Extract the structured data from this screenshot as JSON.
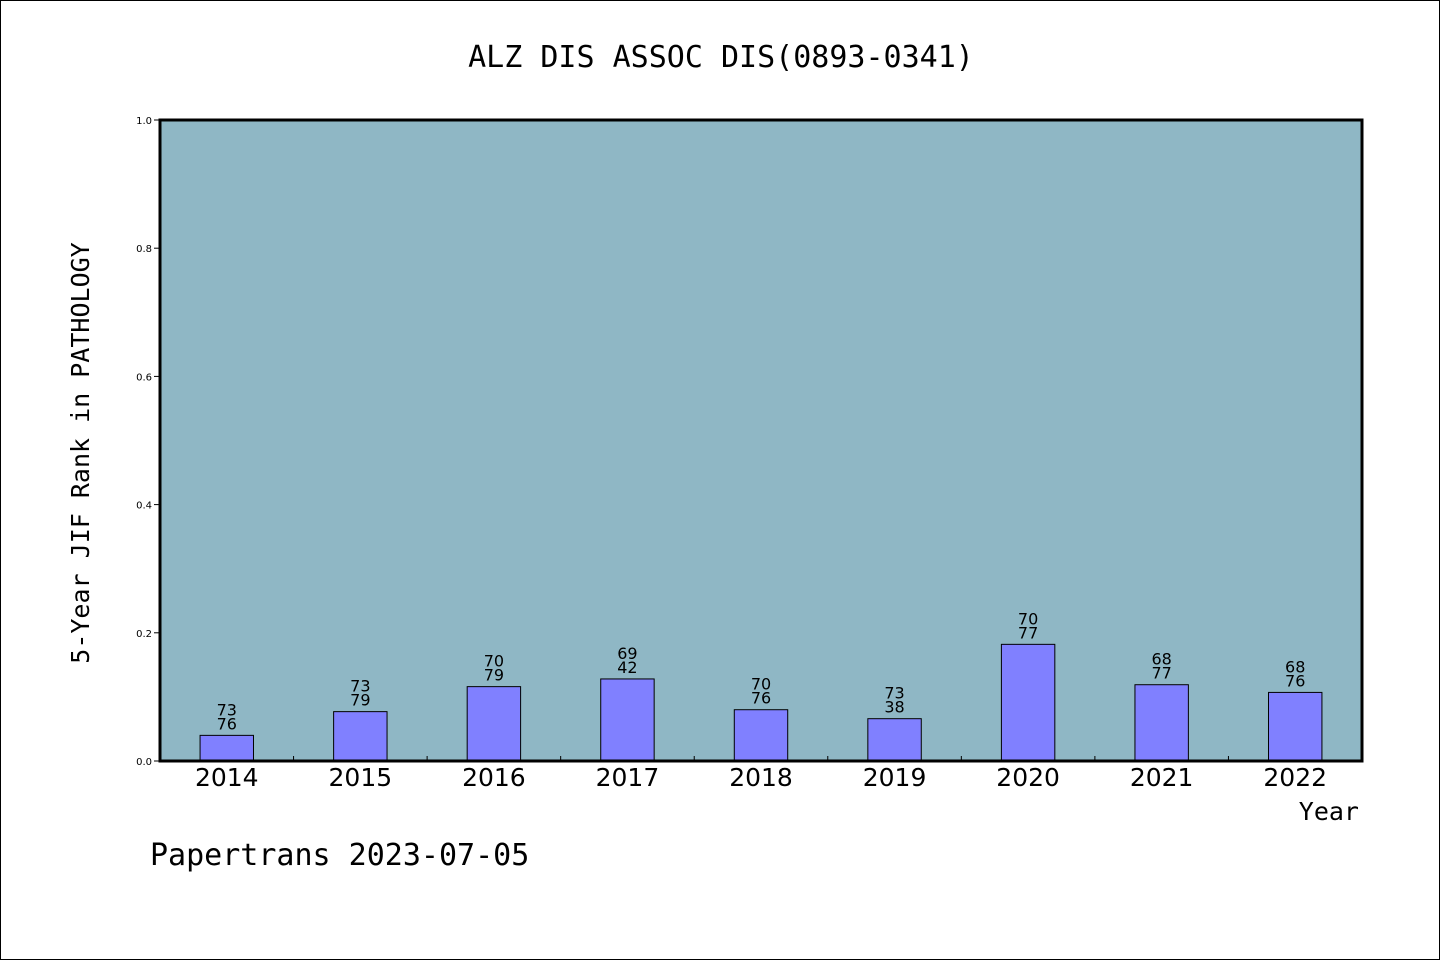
{
  "chart_data": {
    "type": "bar",
    "title": "ALZ DIS ASSOC DIS(0893-0341)",
    "xlabel": "Year",
    "ylabel": "5-Year JIF Rank in PATHOLOGY",
    "ylim": [
      0,
      1.0
    ],
    "yticks": [
      "0.0",
      "0.2",
      "0.4",
      "0.6",
      "0.8",
      "1.0"
    ],
    "categories": [
      "2014",
      "2015",
      "2016",
      "2017",
      "2018",
      "2019",
      "2020",
      "2021",
      "2022"
    ],
    "values": [
      0.04,
      0.077,
      0.116,
      0.128,
      0.08,
      0.066,
      0.182,
      0.119,
      0.107
    ],
    "labels_top": [
      "73",
      "73",
      "70",
      "69",
      "70",
      "73",
      "70",
      "68",
      "68"
    ],
    "labels_bottom": [
      "76",
      "79",
      "79",
      "42",
      "76",
      "38",
      "77",
      "77",
      "76"
    ],
    "grid": false,
    "colors": {
      "plot_background": "#8fb7c5",
      "bar_fill": "#8080ff",
      "bar_stroke": "#000000"
    }
  },
  "footer": "Papertrans 2023-07-05"
}
